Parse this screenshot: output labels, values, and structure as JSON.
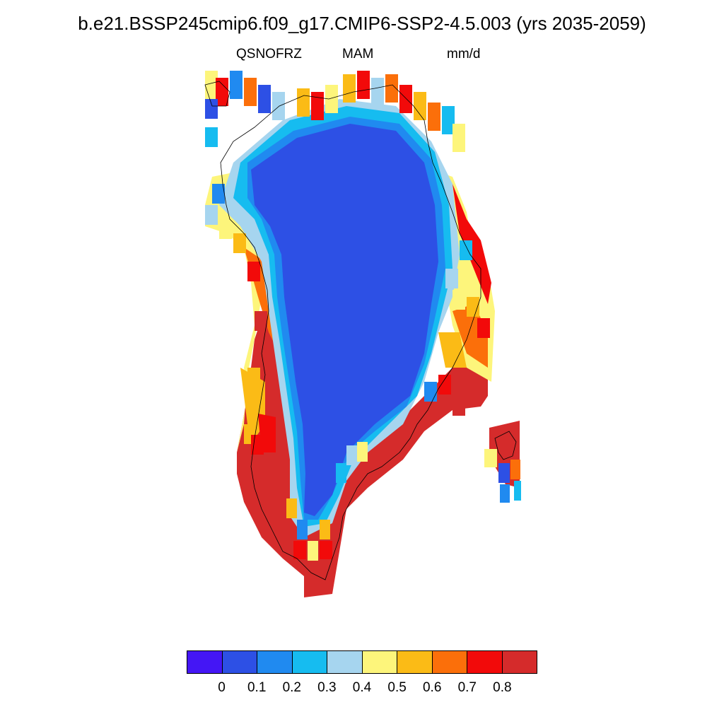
{
  "title": "b.e21.BSSP245cmip6.f09_g17.CMIP6-SSP2-4.5.003 (yrs 2035-2059)",
  "subtitle": {
    "variable": "QSNOFRZ",
    "season": "MAM",
    "units": "mm/d"
  },
  "colorbar": {
    "colors": [
      "#4416f5",
      "#2d50e5",
      "#208af0",
      "#16bcf0",
      "#a6d5ef",
      "#fdf57b",
      "#fbbb16",
      "#fb6f0a",
      "#f20a0a",
      "#d52b2b"
    ],
    "tick_labels": [
      "0",
      "0.1",
      "0.2",
      "0.3",
      "0.4",
      "0.5",
      "0.6",
      "0.7",
      "0.8"
    ]
  },
  "chart_data": {
    "type": "heatmap",
    "title": "b.e21.BSSP245cmip6.f09_g17.CMIP6-SSP2-4.5.003 (yrs 2035-2059)",
    "variable": "QSNOFRZ",
    "season": "MAM",
    "units": "mm/d",
    "region": "Greenland",
    "levels": [
      0,
      0.1,
      0.2,
      0.3,
      0.4,
      0.5,
      0.6,
      0.7,
      0.8
    ],
    "pattern": "interior ice sheet in 0-0.1 band; coastal margin ranging up to >0.8, highest along south and southeast coast"
  }
}
